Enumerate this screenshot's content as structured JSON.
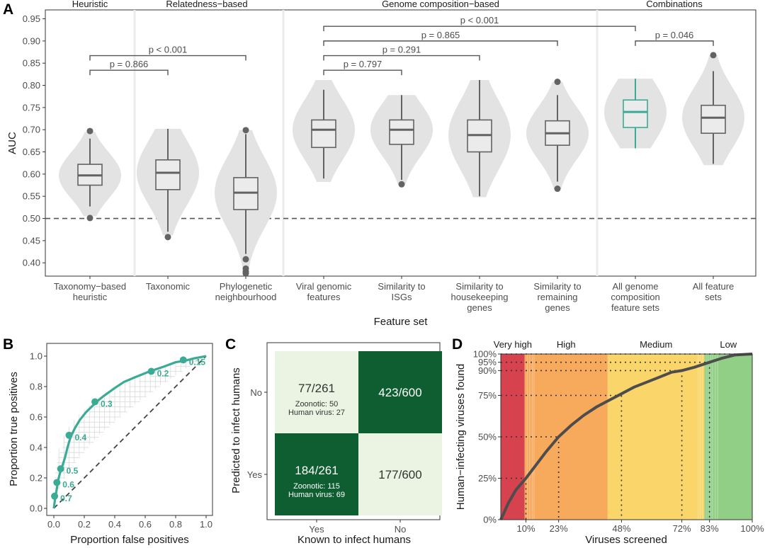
{
  "panels": {
    "a": "A",
    "b": "B",
    "c": "C",
    "d": "D"
  },
  "chart_data": [
    {
      "type": "violin-box",
      "panel": "A",
      "xlabel": "Feature set",
      "ylabel": "AUC",
      "ylim": [
        0.37,
        0.97
      ],
      "yticks": [
        "0.40",
        "0.45",
        "0.50",
        "0.55",
        "0.60",
        "0.65",
        "0.70",
        "0.75",
        "0.80",
        "0.85",
        "0.90",
        "0.95"
      ],
      "reference_line": 0.5,
      "groups": [
        {
          "label": "Heuristic",
          "start": 0,
          "end": 0
        },
        {
          "label": "Relatedness−based",
          "start": 1,
          "end": 2
        },
        {
          "label": "Genome composition−based",
          "start": 3,
          "end": 6
        },
        {
          "label": "Combinations",
          "start": 7,
          "end": 8
        }
      ],
      "categories": [
        {
          "label": [
            "Taxonomy−based",
            "heuristic"
          ],
          "q1": 0.575,
          "median": 0.597,
          "q3": 0.622,
          "wlo": 0.527,
          "whi": 0.68,
          "outliers": [
            0.697,
            0.501
          ],
          "vmin": 0.505,
          "vmax": 0.695,
          "color": "#636363"
        },
        {
          "label": [
            "Taxonomic"
          ],
          "q1": 0.565,
          "median": 0.603,
          "q3": 0.632,
          "wlo": 0.47,
          "whi": 0.702,
          "outliers": [
            0.458
          ],
          "vmin": 0.462,
          "vmax": 0.702,
          "color": "#636363"
        },
        {
          "label": [
            "Phylogenetic",
            "neighbourhood"
          ],
          "q1": 0.52,
          "median": 0.558,
          "q3": 0.592,
          "wlo": 0.42,
          "whi": 0.69,
          "outliers": [
            0.699,
            0.408,
            0.387,
            0.38,
            0.376
          ],
          "vmin": 0.376,
          "vmax": 0.699,
          "color": "#636363"
        },
        {
          "label": [
            "Viral genomic",
            "features"
          ],
          "q1": 0.66,
          "median": 0.7,
          "q3": 0.722,
          "wlo": 0.59,
          "whi": 0.79,
          "outliers": [],
          "vmin": 0.582,
          "vmax": 0.812,
          "color": "#636363"
        },
        {
          "label": [
            "Similarity to",
            "ISGs"
          ],
          "q1": 0.667,
          "median": 0.7,
          "q3": 0.722,
          "wlo": 0.587,
          "whi": 0.778,
          "outliers": [
            0.577
          ],
          "vmin": 0.577,
          "vmax": 0.778,
          "color": "#636363"
        },
        {
          "label": [
            "Similarity to",
            "housekeeping",
            "genes"
          ],
          "q1": 0.65,
          "median": 0.688,
          "q3": 0.722,
          "wlo": 0.55,
          "whi": 0.812,
          "outliers": [],
          "vmin": 0.548,
          "vmax": 0.812,
          "color": "#636363"
        },
        {
          "label": [
            "Similarity to",
            "remaining",
            "genes"
          ],
          "q1": 0.665,
          "median": 0.692,
          "q3": 0.72,
          "wlo": 0.583,
          "whi": 0.778,
          "outliers": [
            0.808,
            0.567
          ],
          "vmin": 0.567,
          "vmax": 0.808,
          "color": "#636363"
        },
        {
          "label": [
            "All genome",
            "composition",
            "feature sets"
          ],
          "q1": 0.705,
          "median": 0.74,
          "q3": 0.767,
          "wlo": 0.658,
          "whi": 0.815,
          "outliers": [],
          "vmin": 0.658,
          "vmax": 0.815,
          "color": "#3bab95"
        },
        {
          "label": [
            "All feature",
            "sets"
          ],
          "q1": 0.692,
          "median": 0.727,
          "q3": 0.755,
          "wlo": 0.623,
          "whi": 0.832,
          "outliers": [
            0.868
          ],
          "vmin": 0.62,
          "vmax": 0.868,
          "color": "#636363"
        }
      ],
      "comparisons": [
        {
          "from": 0,
          "to": 1,
          "label": "p = 0.866",
          "y": 0.834
        },
        {
          "from": 0,
          "to": 2,
          "label": "p < 0.001",
          "y": 0.867
        },
        {
          "from": 3,
          "to": 4,
          "label": "p = 0.797",
          "y": 0.834
        },
        {
          "from": 3,
          "to": 5,
          "label": "p = 0.291",
          "y": 0.867
        },
        {
          "from": 3,
          "to": 6,
          "label": "p = 0.865",
          "y": 0.9
        },
        {
          "from": 3,
          "to": 7,
          "label": "p < 0.001",
          "y": 0.933
        },
        {
          "from": 7,
          "to": 8,
          "label": "p = 0.046",
          "y": 0.9
        }
      ]
    },
    {
      "type": "line",
      "panel": "B",
      "xlabel": "Proportion false positives",
      "ylabel": "Proportion true positives",
      "xlim": [
        0,
        1
      ],
      "ylim": [
        0,
        1
      ],
      "xticks": [
        "0.0",
        "0.2",
        "0.4",
        "0.6",
        "0.8",
        "1.0"
      ],
      "yticks": [
        "0.0",
        "0.2",
        "0.4",
        "0.6",
        "0.8",
        "1.0"
      ],
      "color": "#3bab95",
      "curve": [
        [
          0,
          0
        ],
        [
          0.005,
          0.04
        ],
        [
          0.01,
          0.08
        ],
        [
          0.02,
          0.13
        ],
        [
          0.025,
          0.17
        ],
        [
          0.035,
          0.21
        ],
        [
          0.045,
          0.25
        ],
        [
          0.06,
          0.29
        ],
        [
          0.075,
          0.34
        ],
        [
          0.09,
          0.4
        ],
        [
          0.11,
          0.47
        ],
        [
          0.14,
          0.53
        ],
        [
          0.17,
          0.58
        ],
        [
          0.21,
          0.63
        ],
        [
          0.25,
          0.67
        ],
        [
          0.28,
          0.7
        ],
        [
          0.33,
          0.74
        ],
        [
          0.4,
          0.79
        ],
        [
          0.46,
          0.83
        ],
        [
          0.53,
          0.86
        ],
        [
          0.63,
          0.9
        ],
        [
          0.72,
          0.93
        ],
        [
          0.8,
          0.96
        ],
        [
          0.86,
          0.97
        ],
        [
          0.92,
          0.985
        ],
        [
          1.0,
          1.0
        ]
      ],
      "thresholds": [
        {
          "label": "0.7",
          "x": 0.005,
          "y": 0.08
        },
        {
          "label": "0.6",
          "x": 0.02,
          "y": 0.17
        },
        {
          "label": "0.5",
          "x": 0.045,
          "y": 0.26
        },
        {
          "label": "0.4",
          "x": 0.1,
          "y": 0.48
        },
        {
          "label": "0.3",
          "x": 0.27,
          "y": 0.7
        },
        {
          "label": "0.2",
          "x": 0.64,
          "y": 0.9
        },
        {
          "label": "0.15",
          "x": 0.85,
          "y": 0.975
        }
      ]
    },
    {
      "type": "table",
      "panel": "C",
      "xlabel": "Known to infect humans",
      "ylabel": "Predicted to infect humans",
      "columns": [
        "Yes",
        "No"
      ],
      "rows": [
        "No",
        "Yes"
      ],
      "cells": [
        {
          "row": 0,
          "col": 0,
          "main": "77/261",
          "sub": [
            "Zoonotic: 50",
            "Human virus: 27"
          ],
          "dark": false
        },
        {
          "row": 0,
          "col": 1,
          "main": "423/600",
          "sub": [],
          "dark": true
        },
        {
          "row": 1,
          "col": 0,
          "main": "184/261",
          "sub": [
            "Zoonotic: 115",
            "Human virus: 69"
          ],
          "dark": true
        },
        {
          "row": 1,
          "col": 1,
          "main": "177/600",
          "sub": [],
          "dark": false
        }
      ]
    },
    {
      "type": "line",
      "panel": "D",
      "xlabel": "Viruses screened",
      "ylabel": "Human−infecting viruses found",
      "xlim": [
        0,
        100
      ],
      "ylim": [
        0,
        100
      ],
      "xticks": [
        {
          "v": 10,
          "label": "10%"
        },
        {
          "v": 23,
          "label": "23%"
        },
        {
          "v": 48,
          "label": "48%"
        },
        {
          "v": 72,
          "label": "72%"
        },
        {
          "v": 83,
          "label": "83%"
        },
        {
          "v": 100,
          "label": "100%"
        }
      ],
      "yticks": [
        {
          "v": 0,
          "label": "0%"
        },
        {
          "v": 25,
          "label": "25%"
        },
        {
          "v": 50,
          "label": "50%"
        },
        {
          "v": 75,
          "label": "75%"
        },
        {
          "v": 90,
          "label": "90%"
        },
        {
          "v": 95,
          "label": "95%"
        },
        {
          "v": 100,
          "label": "100%"
        }
      ],
      "bands": [
        {
          "label": "Very high",
          "from": 0,
          "to": 9.5,
          "color": "#d7424f"
        },
        {
          "label": "High",
          "from": 9.5,
          "to": 42.5,
          "color": "#f7a95c"
        },
        {
          "label": "Medium",
          "from": 42.5,
          "to": 81,
          "color": "#fad56a"
        },
        {
          "label": "Low",
          "from": 81,
          "to": 100,
          "color": "#90cf85"
        }
      ],
      "series_color": "#4d4d4d",
      "curve": [
        [
          0,
          0
        ],
        [
          3,
          10
        ],
        [
          6,
          18
        ],
        [
          10,
          25
        ],
        [
          14,
          33
        ],
        [
          18,
          41
        ],
        [
          23,
          50
        ],
        [
          28,
          57
        ],
        [
          33,
          63
        ],
        [
          38,
          68
        ],
        [
          43,
          72
        ],
        [
          48,
          76
        ],
        [
          53,
          80
        ],
        [
          58,
          83
        ],
        [
          63,
          86
        ],
        [
          68,
          89
        ],
        [
          72,
          90
        ],
        [
          77,
          92
        ],
        [
          83,
          95
        ],
        [
          88,
          97.5
        ],
        [
          93,
          99.4
        ],
        [
          100,
          100
        ]
      ],
      "guides": [
        {
          "x": 10,
          "y": 25
        },
        {
          "x": 23,
          "y": 50
        },
        {
          "x": 48,
          "y": 75
        },
        {
          "x": 72,
          "y": 90
        },
        {
          "x": 83,
          "y": 95
        }
      ]
    }
  ]
}
